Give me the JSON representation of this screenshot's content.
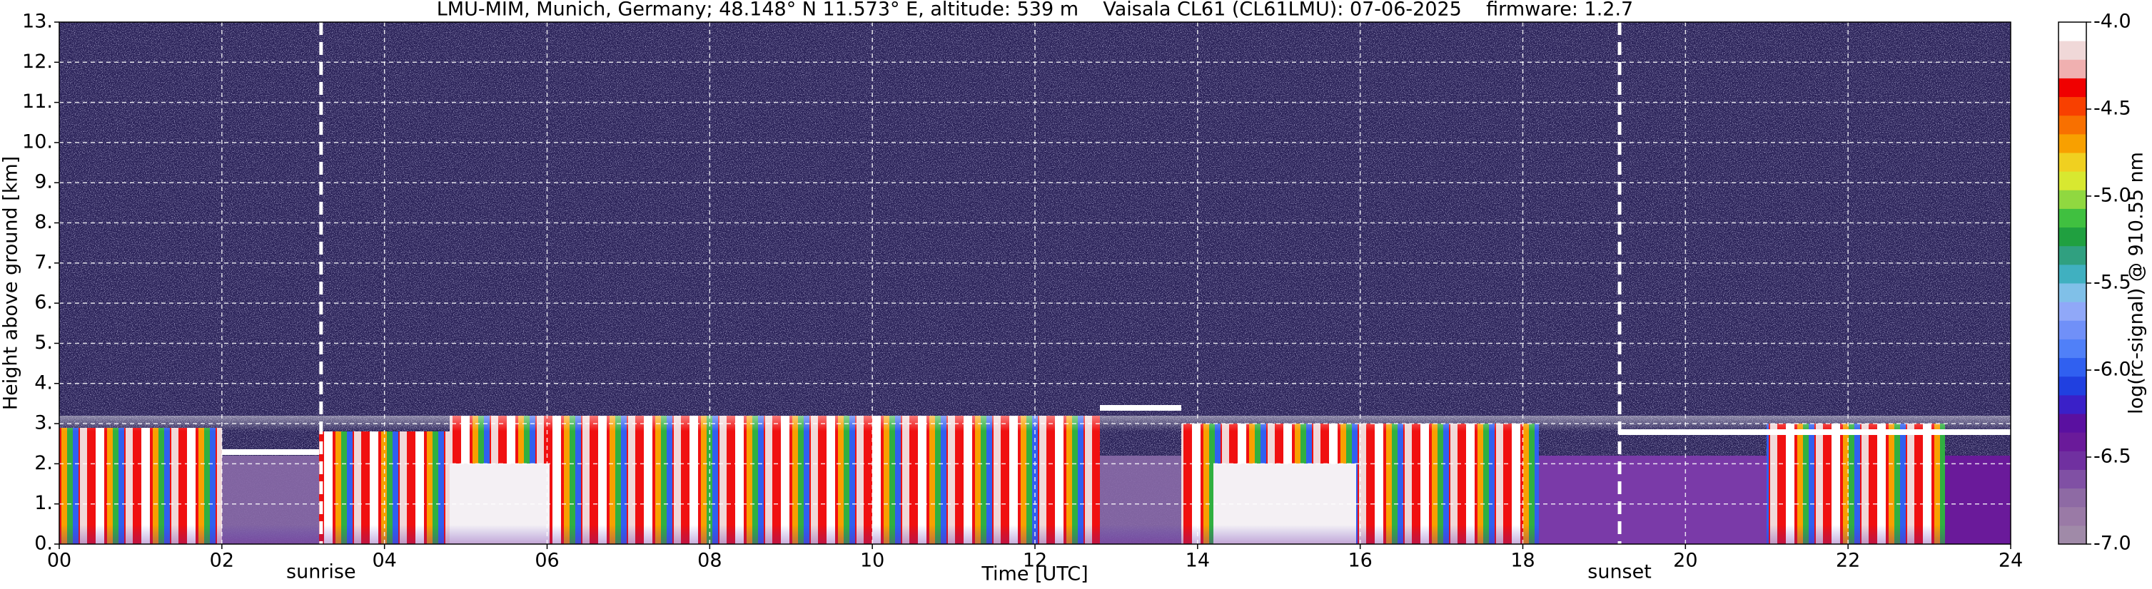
{
  "chart_data": {
    "type": "heatmap",
    "title": "LMU-MIM, Munich, Germany; 48.148° N 11.573° E, altitude: 539 m    Vaisala CL61 (CL61LMU): 07-06-2025    firmware: 1.2.7",
    "x_label": "Time [UTC]",
    "y_label": "Height above ground [km]",
    "xlim": [
      0,
      24
    ],
    "xticks": [
      {
        "value": 0,
        "label": "00"
      },
      {
        "value": 2,
        "label": "02"
      },
      {
        "value": 4,
        "label": "04"
      },
      {
        "value": 6,
        "label": "06"
      },
      {
        "value": 8,
        "label": "08"
      },
      {
        "value": 10,
        "label": "10"
      },
      {
        "value": 12,
        "label": "12"
      },
      {
        "value": 14,
        "label": "14"
      },
      {
        "value": 16,
        "label": "16"
      },
      {
        "value": 18,
        "label": "18"
      },
      {
        "value": 20,
        "label": "20"
      },
      {
        "value": 22,
        "label": "22"
      },
      {
        "value": 24,
        "label": "24"
      }
    ],
    "ylim": [
      0,
      13
    ],
    "yticks": [
      {
        "value": 0,
        "label": "0."
      },
      {
        "value": 1,
        "label": "1."
      },
      {
        "value": 2,
        "label": "2."
      },
      {
        "value": 3,
        "label": "3."
      },
      {
        "value": 4,
        "label": "4."
      },
      {
        "value": 5,
        "label": "5."
      },
      {
        "value": 6,
        "label": "6."
      },
      {
        "value": 7,
        "label": "7."
      },
      {
        "value": 8,
        "label": "8."
      },
      {
        "value": 9,
        "label": "9."
      },
      {
        "value": 10,
        "label": "10."
      },
      {
        "value": 11,
        "label": "11."
      },
      {
        "value": 12,
        "label": "12."
      },
      {
        "value": 13,
        "label": "13."
      }
    ],
    "grid": true,
    "annotations": [
      {
        "label": "sunrise",
        "x": 3.22
      },
      {
        "label": "sunset",
        "x": 19.19
      }
    ],
    "colorbar": {
      "label": "log(rc-signal) @ 910.55 nm",
      "lim": [
        -7,
        -4
      ],
      "ticks": [
        {
          "value": -7,
          "label": "-7.0"
        },
        {
          "value": -6.5,
          "label": "-6.5"
        },
        {
          "value": -6,
          "label": "-6.0"
        },
        {
          "value": -5.5,
          "label": "-5.5"
        },
        {
          "value": -5,
          "label": "-5.0"
        },
        {
          "value": -4.5,
          "label": "-4.5"
        },
        {
          "value": -4,
          "label": "-4.0"
        }
      ],
      "colors": [
        "#a08aa8",
        "#9a7aa6",
        "#8e6aa4",
        "#8050a4",
        "#7030a0",
        "#6a1a9a",
        "#5a10a0",
        "#3a20c8",
        "#2040e0",
        "#3060f0",
        "#5080f8",
        "#7090f8",
        "#90a8f8",
        "#80c0e8",
        "#40b0c0",
        "#30a080",
        "#20a040",
        "#40c040",
        "#90d840",
        "#d8e830",
        "#f0d020",
        "#f8a000",
        "#f87000",
        "#f84000",
        "#f00000",
        "#f0b0b0",
        "#f0d8d8",
        "#ffffff"
      ]
    }
  }
}
